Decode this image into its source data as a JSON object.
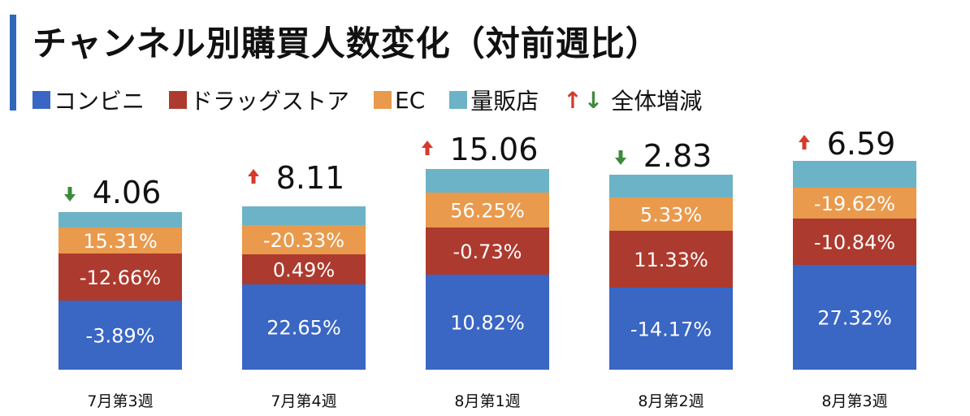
{
  "title": "チャンネル別購買人数変化（対前週比）",
  "legend": {
    "items": [
      {
        "label": "コンビニ",
        "color": "#3a66c4"
      },
      {
        "label": "ドラッグストア",
        "color": "#ad3a2e"
      },
      {
        "label": "EC",
        "color": "#e99a4c"
      },
      {
        "label": "量販店",
        "color": "#6db3c7"
      }
    ],
    "arrows_up": "↑",
    "arrows_down": "↓",
    "total_label": "全体増減"
  },
  "chart_data": {
    "type": "bar",
    "stacked": true,
    "categories": [
      "7月第3週",
      "7月第4週",
      "8月第1週",
      "8月第2週",
      "8月第3週"
    ],
    "series": [
      {
        "name": "コンビニ",
        "color": "#3a66c4",
        "values": [
          "-3.89%",
          "22.65%",
          "10.82%",
          "-14.17%",
          "27.32%"
        ]
      },
      {
        "name": "ドラッグストア",
        "color": "#ad3a2e",
        "values": [
          "-12.66%",
          "0.49%",
          "-0.73%",
          "11.33%",
          "-10.84%"
        ]
      },
      {
        "name": "EC",
        "color": "#e99a4c",
        "values": [
          "15.31%",
          "-20.33%",
          "56.25%",
          "5.33%",
          "-19.62%"
        ]
      },
      {
        "name": "量販店",
        "color": "#6db3c7",
        "values": [
          "",
          "",
          "",
          "",
          ""
        ]
      }
    ],
    "totals": [
      {
        "value": "4.06",
        "direction": "down"
      },
      {
        "value": "8.11",
        "direction": "up"
      },
      {
        "value": "15.06",
        "direction": "up"
      },
      {
        "value": "2.83",
        "direction": "down"
      },
      {
        "value": "6.59",
        "direction": "up"
      }
    ]
  }
}
